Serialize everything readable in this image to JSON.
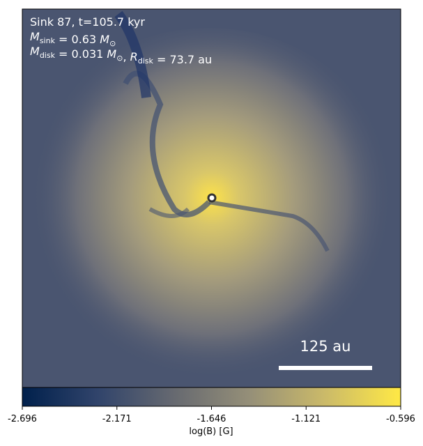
{
  "chart_data": {
    "type": "heatmap",
    "annotations": [
      [
        {
          "text": "Sink 87, t=105.7 kyr"
        }
      ],
      [
        {
          "italic": "M",
          "sub": "sink"
        },
        {
          "text": " = 0.63 "
        },
        {
          "italic": "M",
          "sub": "⊙"
        }
      ],
      [
        {
          "italic": "M",
          "sub": "disk"
        },
        {
          "text": " = 0.031 "
        },
        {
          "italic": "M",
          "sub": "⊙"
        },
        {
          "text": ", "
        },
        {
          "italic": "R",
          "sub": "disk"
        },
        {
          "text": " = 73.7 au"
        }
      ]
    ],
    "scale_bar": "125 au",
    "colorbar": {
      "label": "log(B) [G]",
      "lim": [
        -2.696,
        -0.596
      ],
      "ticks": [
        -2.696,
        -2.171,
        -1.646,
        -1.121,
        -0.596
      ],
      "colors": [
        "#00204c",
        "#31446b",
        "#666970",
        "#958f78",
        "#cbba69",
        "#ffe945"
      ]
    }
  }
}
